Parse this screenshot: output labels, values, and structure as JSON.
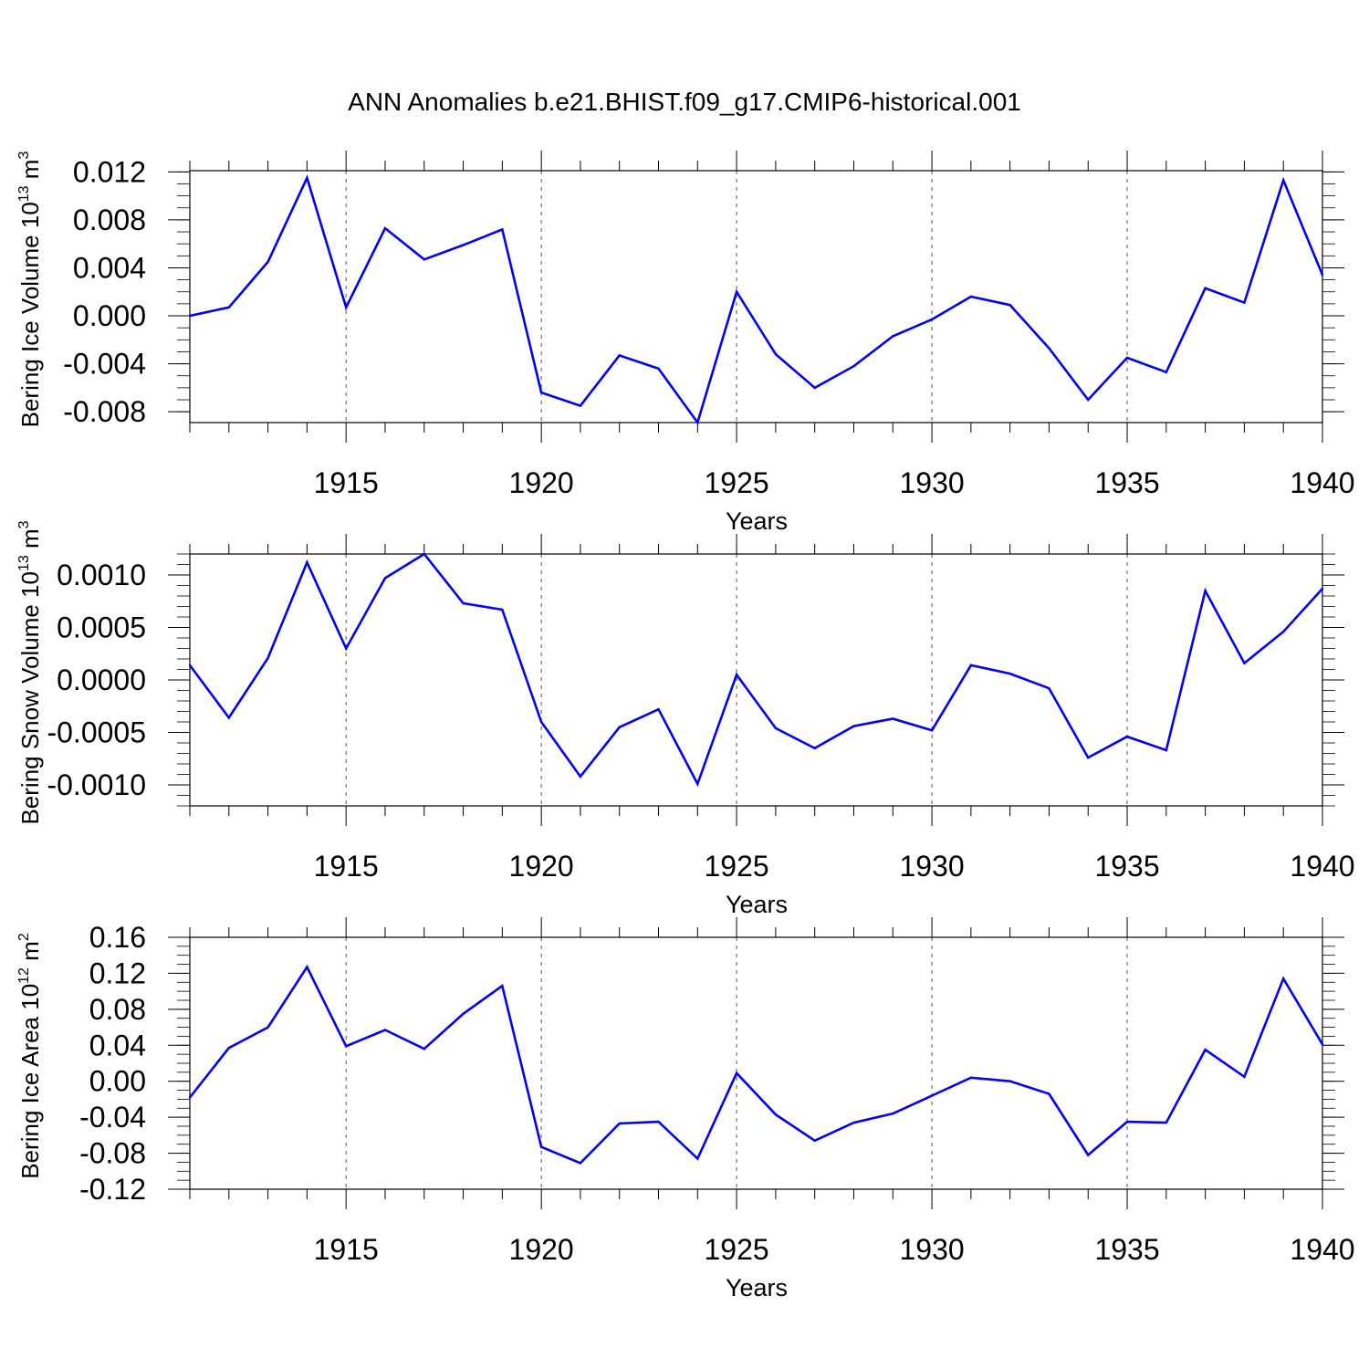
{
  "title": "ANN Anomalies b.e21.BHIST.f09_g17.CMIP6-historical.001",
  "colors": {
    "series": "#0000ff",
    "axis": "#000000",
    "grid": "#555555"
  },
  "chart_data": [
    {
      "type": "line",
      "ylabel_main": "Bering Ice Volume 10",
      "ylabel_exp": "13",
      "ylabel_unit": " m",
      "ylabel_unit_exp": "3",
      "xlabel": "Years",
      "xlim": [
        1911,
        1940
      ],
      "ylim": [
        -0.0089,
        0.0121
      ],
      "x_ticks": [
        "1915",
        "1920",
        "1925",
        "1930",
        "1935",
        "1940"
      ],
      "y_ticks": [
        "-0.008",
        "-0.004",
        "0.000",
        "0.004",
        "0.008",
        "0.012"
      ],
      "y_tick_values": [
        -0.008,
        -0.004,
        0.0,
        0.004,
        0.008,
        0.012
      ],
      "grid": "vertical dashed at major x ticks",
      "x": [
        1911,
        1912,
        1913,
        1914,
        1915,
        1916,
        1917,
        1918,
        1919,
        1920,
        1921,
        1922,
        1923,
        1924,
        1925,
        1926,
        1927,
        1928,
        1929,
        1930,
        1931,
        1932,
        1933,
        1934,
        1935,
        1936,
        1937,
        1938,
        1939,
        1940
      ],
      "values": [
        0.0,
        0.0007,
        0.0045,
        0.0115,
        0.0007,
        0.0073,
        0.0047,
        0.0059,
        0.0072,
        -0.0064,
        -0.0075,
        -0.0033,
        -0.0044,
        -0.0089,
        0.002,
        -0.0032,
        -0.006,
        -0.0042,
        -0.0017,
        -0.0003,
        0.0016,
        0.0009,
        -0.0027,
        -0.007,
        -0.0035,
        -0.0047,
        0.0023,
        0.0011,
        0.0113,
        0.0034
      ]
    },
    {
      "type": "line",
      "ylabel_main": "Bering Snow Volume 10",
      "ylabel_exp": "13",
      "ylabel_unit": " m",
      "ylabel_unit_exp": "3",
      "xlabel": "Years",
      "xlim": [
        1911,
        1940
      ],
      "ylim": [
        -0.0012,
        0.0012
      ],
      "x_ticks": [
        "1915",
        "1920",
        "1925",
        "1930",
        "1935",
        "1940"
      ],
      "y_ticks": [
        "-0.0010",
        "-0.0005",
        "0.0000",
        "0.0005",
        "0.0010"
      ],
      "y_tick_values": [
        -0.001,
        -0.0005,
        0.0,
        0.0005,
        0.001
      ],
      "grid": "vertical dashed at major x ticks",
      "x": [
        1911,
        1912,
        1913,
        1914,
        1915,
        1916,
        1917,
        1918,
        1919,
        1920,
        1921,
        1922,
        1923,
        1924,
        1925,
        1926,
        1927,
        1928,
        1929,
        1930,
        1931,
        1932,
        1933,
        1934,
        1935,
        1936,
        1937,
        1938,
        1939,
        1940
      ],
      "values": [
        0.00014,
        -0.00036,
        0.00021,
        0.00112,
        0.0003,
        0.00097,
        0.0012,
        0.00073,
        0.00067,
        -0.0004,
        -0.00092,
        -0.00045,
        -0.00028,
        -0.00099,
        5e-05,
        -0.00046,
        -0.00065,
        -0.00044,
        -0.00037,
        -0.00048,
        0.00014,
        6e-05,
        -8e-05,
        -0.00074,
        -0.00054,
        -0.00067,
        0.00085,
        0.00016,
        0.00046,
        0.00087
      ]
    },
    {
      "type": "line",
      "ylabel_main": "Bering Ice Area 10",
      "ylabel_exp": "12",
      "ylabel_unit": " m",
      "ylabel_unit_exp": "2",
      "xlabel": "Years",
      "xlim": [
        1911,
        1940
      ],
      "ylim": [
        -0.12,
        0.16
      ],
      "x_ticks": [
        "1915",
        "1920",
        "1925",
        "1930",
        "1935",
        "1940"
      ],
      "y_ticks": [
        "-0.12",
        "-0.08",
        "-0.04",
        "0.00",
        "0.04",
        "0.08",
        "0.12",
        "0.16"
      ],
      "y_tick_values": [
        -0.12,
        -0.08,
        -0.04,
        0.0,
        0.04,
        0.08,
        0.12,
        0.16
      ],
      "grid": "vertical dashed at major x ticks",
      "x": [
        1911,
        1912,
        1913,
        1914,
        1915,
        1916,
        1917,
        1918,
        1919,
        1920,
        1921,
        1922,
        1923,
        1924,
        1925,
        1926,
        1927,
        1928,
        1929,
        1930,
        1931,
        1932,
        1933,
        1934,
        1935,
        1936,
        1937,
        1938,
        1939,
        1940
      ],
      "values": [
        -0.018,
        0.037,
        0.06,
        0.127,
        0.039,
        0.057,
        0.036,
        0.075,
        0.106,
        -0.073,
        -0.091,
        -0.047,
        -0.045,
        -0.086,
        0.009,
        -0.037,
        -0.066,
        -0.046,
        -0.036,
        -0.016,
        0.004,
        0.0,
        -0.014,
        -0.082,
        -0.045,
        -0.046,
        0.035,
        0.005,
        0.114,
        0.041
      ]
    }
  ]
}
